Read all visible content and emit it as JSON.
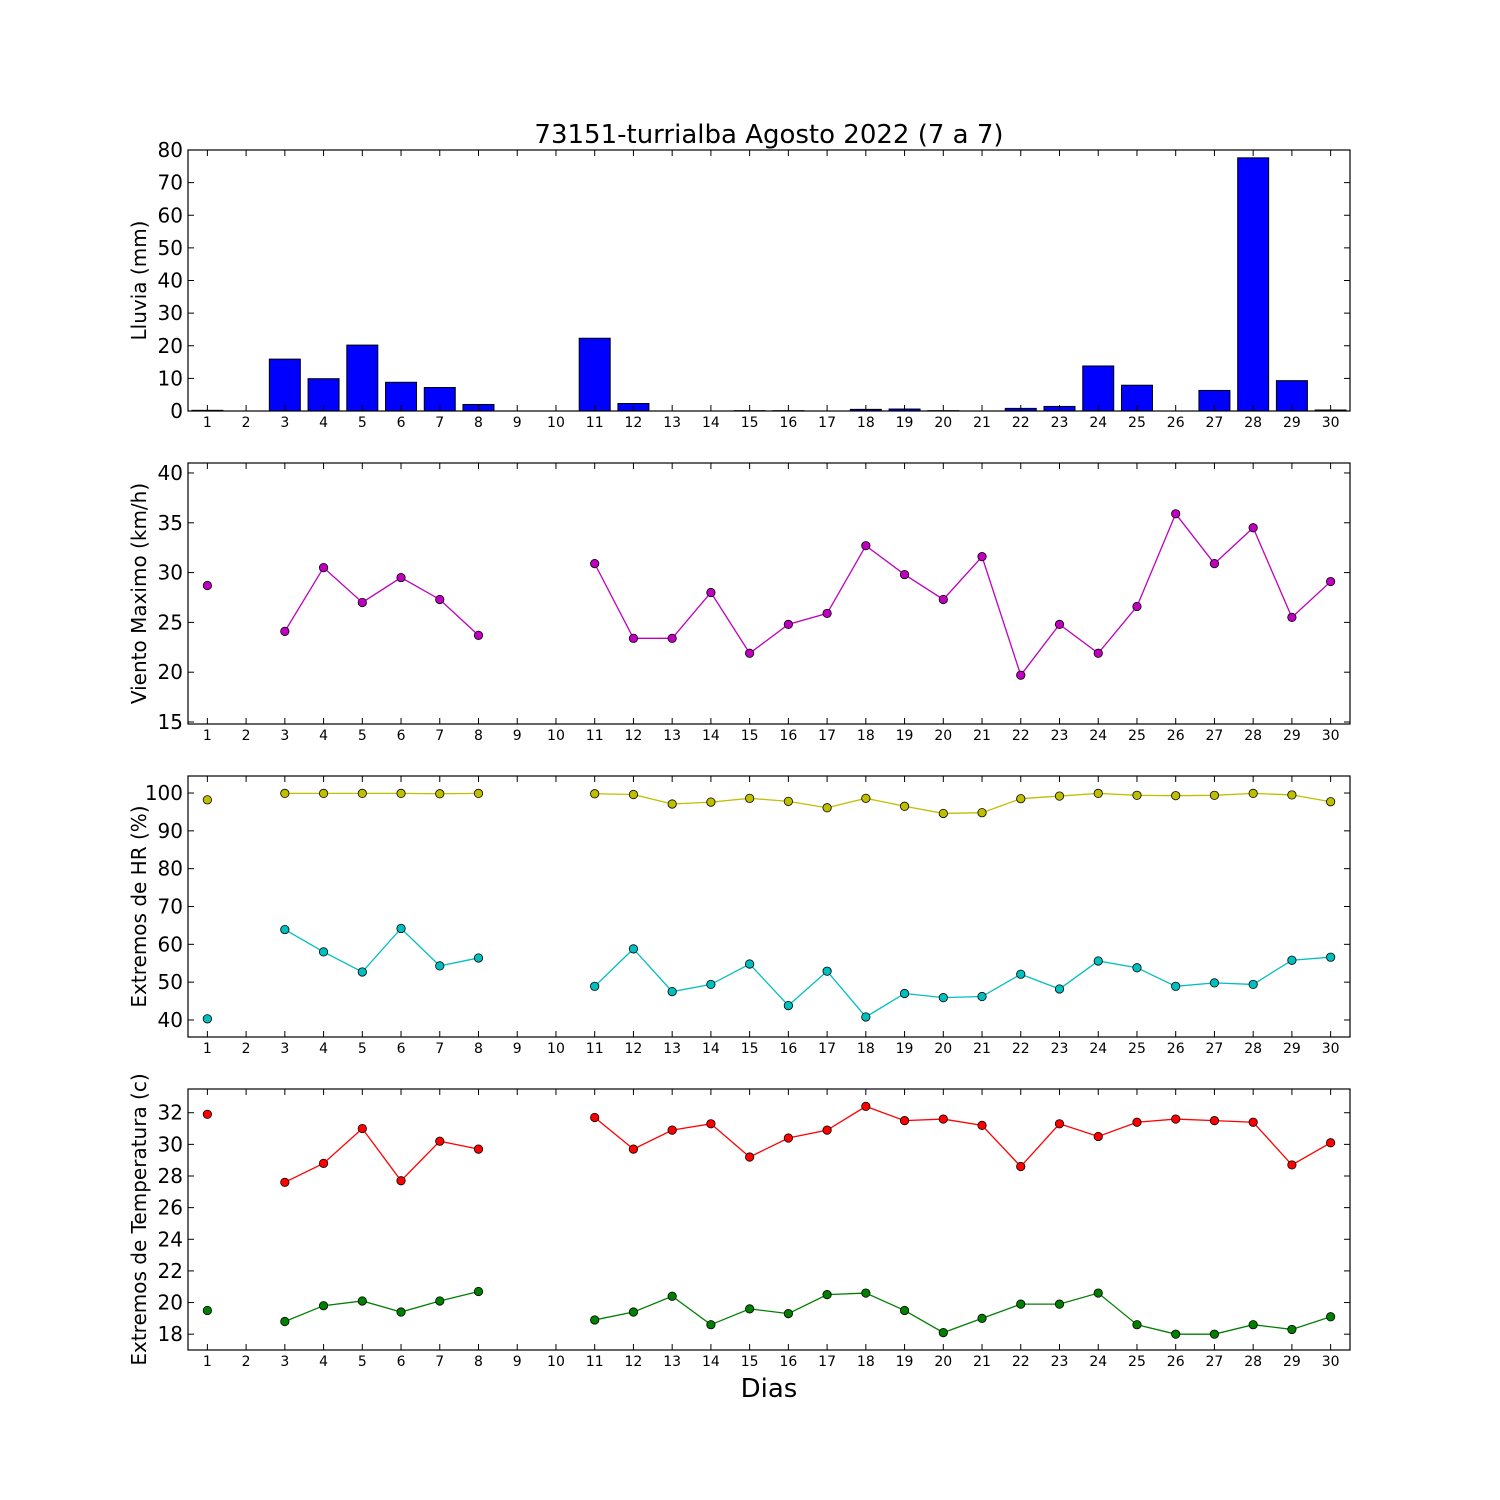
{
  "figure": {
    "title": "73151-turrialba Agosto 2022  (7 a 7)",
    "xlabel": "Dias"
  },
  "chart_data": [
    {
      "type": "bar",
      "ylabel": "Lluvia (mm)",
      "ylim": [
        0,
        80
      ],
      "yticks": [
        0,
        10,
        20,
        30,
        40,
        50,
        60,
        70,
        80
      ],
      "x": [
        1,
        2,
        3,
        4,
        5,
        6,
        7,
        8,
        9,
        10,
        11,
        12,
        13,
        14,
        15,
        16,
        17,
        18,
        19,
        20,
        21,
        22,
        23,
        24,
        25,
        26,
        27,
        28,
        29,
        30
      ],
      "xlim": [
        0.5,
        30.5
      ],
      "series": [
        {
          "color": "#0000ff",
          "values": [
            0.2,
            0,
            15.9,
            9.9,
            20.2,
            8.8,
            7.2,
            2.0,
            0,
            0,
            22.3,
            2.3,
            0,
            0,
            0.1,
            0.1,
            0,
            0.5,
            0.6,
            0.1,
            0,
            0.8,
            1.4,
            13.8,
            7.9,
            0,
            6.3,
            77.6,
            9.3,
            0.3
          ]
        }
      ],
      "grid": false
    },
    {
      "type": "line",
      "ylabel": "Viento Maximo (km/h)",
      "ylim": [
        14.8,
        41
      ],
      "yticks": [
        15,
        20,
        25,
        30,
        35,
        40
      ],
      "x": [
        1,
        2,
        3,
        4,
        5,
        6,
        7,
        8,
        9,
        10,
        11,
        12,
        13,
        14,
        15,
        16,
        17,
        18,
        19,
        20,
        21,
        22,
        23,
        24,
        25,
        26,
        27,
        28,
        29,
        30
      ],
      "xlim": [
        0.5,
        30.5
      ],
      "series": [
        {
          "color": "#bf00bf",
          "values": [
            28.7,
            null,
            24.1,
            30.5,
            27.0,
            29.5,
            27.3,
            23.7,
            null,
            null,
            30.9,
            23.4,
            23.4,
            28.0,
            21.9,
            24.8,
            25.9,
            32.7,
            29.8,
            27.3,
            31.6,
            19.7,
            24.8,
            21.9,
            26.6,
            35.9,
            30.9,
            34.5,
            25.5,
            29.1
          ]
        }
      ],
      "grid": false
    },
    {
      "type": "line",
      "ylabel": "Extremos de HR (%)",
      "ylim": [
        35.5,
        104.5
      ],
      "yticks": [
        40,
        50,
        60,
        70,
        80,
        90,
        100
      ],
      "x": [
        1,
        2,
        3,
        4,
        5,
        6,
        7,
        8,
        9,
        10,
        11,
        12,
        13,
        14,
        15,
        16,
        17,
        18,
        19,
        20,
        21,
        22,
        23,
        24,
        25,
        26,
        27,
        28,
        29,
        30
      ],
      "xlim": [
        0.5,
        30.5
      ],
      "series": [
        {
          "color": "#bfbf00",
          "values": [
            98.2,
            null,
            99.9,
            99.9,
            99.9,
            99.9,
            99.8,
            99.9,
            null,
            null,
            99.8,
            99.6,
            97.1,
            97.6,
            98.6,
            97.8,
            96.1,
            98.6,
            96.5,
            94.6,
            94.8,
            98.5,
            99.2,
            99.9,
            99.4,
            99.3,
            99.4,
            99.9,
            99.5,
            97.7
          ]
        },
        {
          "color": "#00bfbf",
          "values": [
            40.3,
            null,
            63.9,
            58.0,
            52.7,
            64.2,
            54.3,
            56.4,
            null,
            null,
            48.9,
            58.8,
            47.5,
            49.4,
            54.8,
            43.8,
            52.9,
            40.8,
            47.0,
            45.9,
            46.2,
            52.1,
            48.2,
            55.6,
            53.8,
            48.9,
            49.8,
            49.4,
            55.8,
            56.6
          ]
        }
      ],
      "grid": false
    },
    {
      "type": "line",
      "ylabel": "Extremos de Temperatura (c)",
      "ylim": [
        17,
        33.5
      ],
      "yticks": [
        18,
        20,
        22,
        24,
        26,
        28,
        30,
        32
      ],
      "x": [
        1,
        2,
        3,
        4,
        5,
        6,
        7,
        8,
        9,
        10,
        11,
        12,
        13,
        14,
        15,
        16,
        17,
        18,
        19,
        20,
        21,
        22,
        23,
        24,
        25,
        26,
        27,
        28,
        29,
        30
      ],
      "xlim": [
        0.5,
        30.5
      ],
      "series": [
        {
          "color": "#ff0000",
          "values": [
            31.9,
            null,
            27.6,
            28.8,
            31.0,
            27.7,
            30.2,
            29.7,
            null,
            null,
            31.7,
            29.7,
            30.9,
            31.3,
            29.2,
            30.4,
            30.9,
            32.4,
            31.5,
            31.6,
            31.2,
            28.6,
            31.3,
            30.5,
            31.4,
            31.6,
            31.5,
            31.4,
            28.7,
            30.1
          ]
        },
        {
          "color": "#008000",
          "values": [
            19.5,
            null,
            18.8,
            19.8,
            20.1,
            19.4,
            20.1,
            20.7,
            null,
            null,
            18.9,
            19.4,
            20.4,
            18.6,
            19.6,
            19.3,
            20.5,
            20.6,
            19.5,
            18.1,
            19.0,
            19.9,
            19.9,
            20.6,
            18.6,
            18.0,
            18.0,
            18.6,
            18.3,
            19.1
          ]
        }
      ],
      "grid": false
    }
  ]
}
